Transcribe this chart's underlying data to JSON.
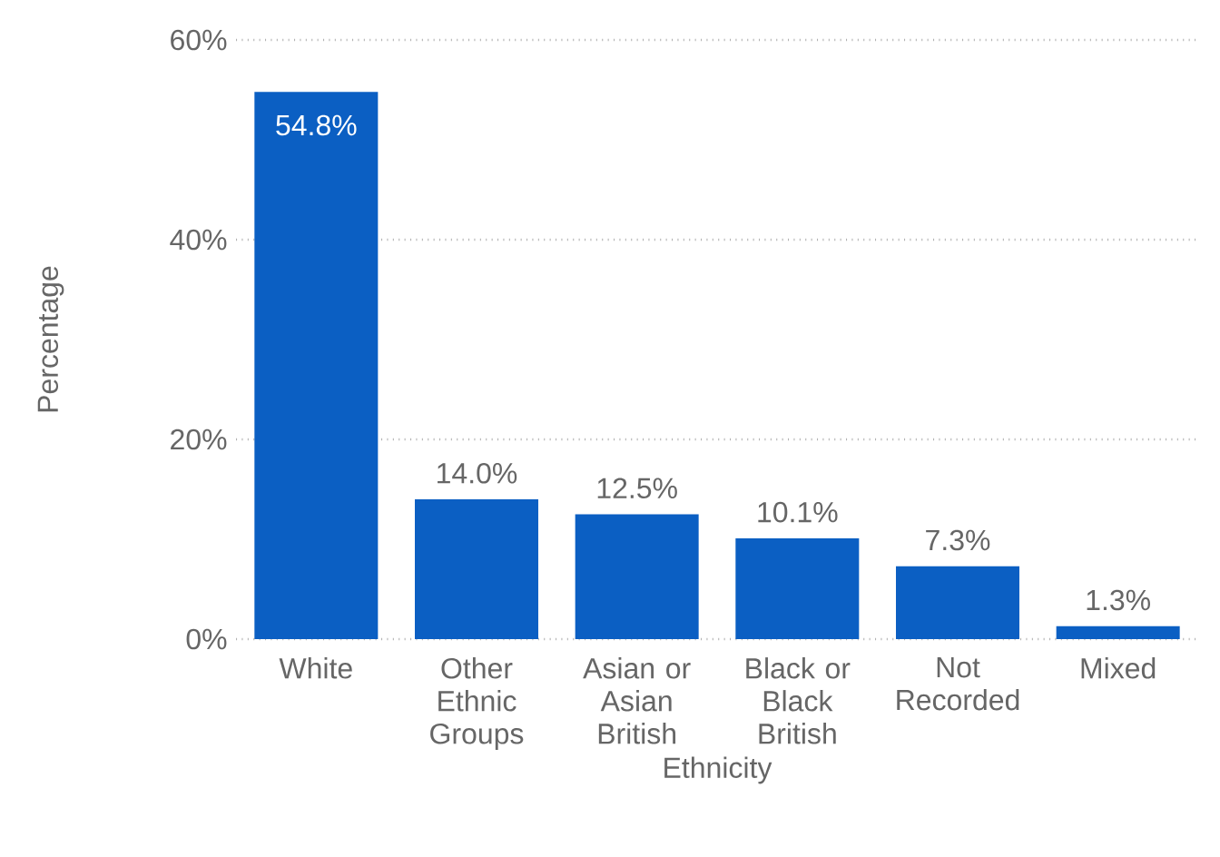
{
  "chart_data": {
    "type": "bar",
    "xlabel": "Ethnicity",
    "ylabel": "Percentage",
    "categories": [
      "White",
      "Other Ethnic Groups",
      "Asian or Asian British",
      "Black or Black British",
      "Not Recorded",
      "Mixed"
    ],
    "values": [
      54.8,
      14.0,
      12.5,
      10.1,
      7.3,
      1.3
    ],
    "value_labels": [
      "54.8%",
      "14.0%",
      "12.5%",
      "10.1%",
      "7.3%",
      "1.3%"
    ],
    "color": "#0b5fc3",
    "ylim": [
      0,
      60
    ],
    "yticks": [
      {
        "value": 0,
        "label": "0%"
      },
      {
        "value": 20,
        "label": "20%"
      },
      {
        "value": 40,
        "label": "40%"
      },
      {
        "value": 60,
        "label": "60%"
      }
    ],
    "grid": "y"
  }
}
